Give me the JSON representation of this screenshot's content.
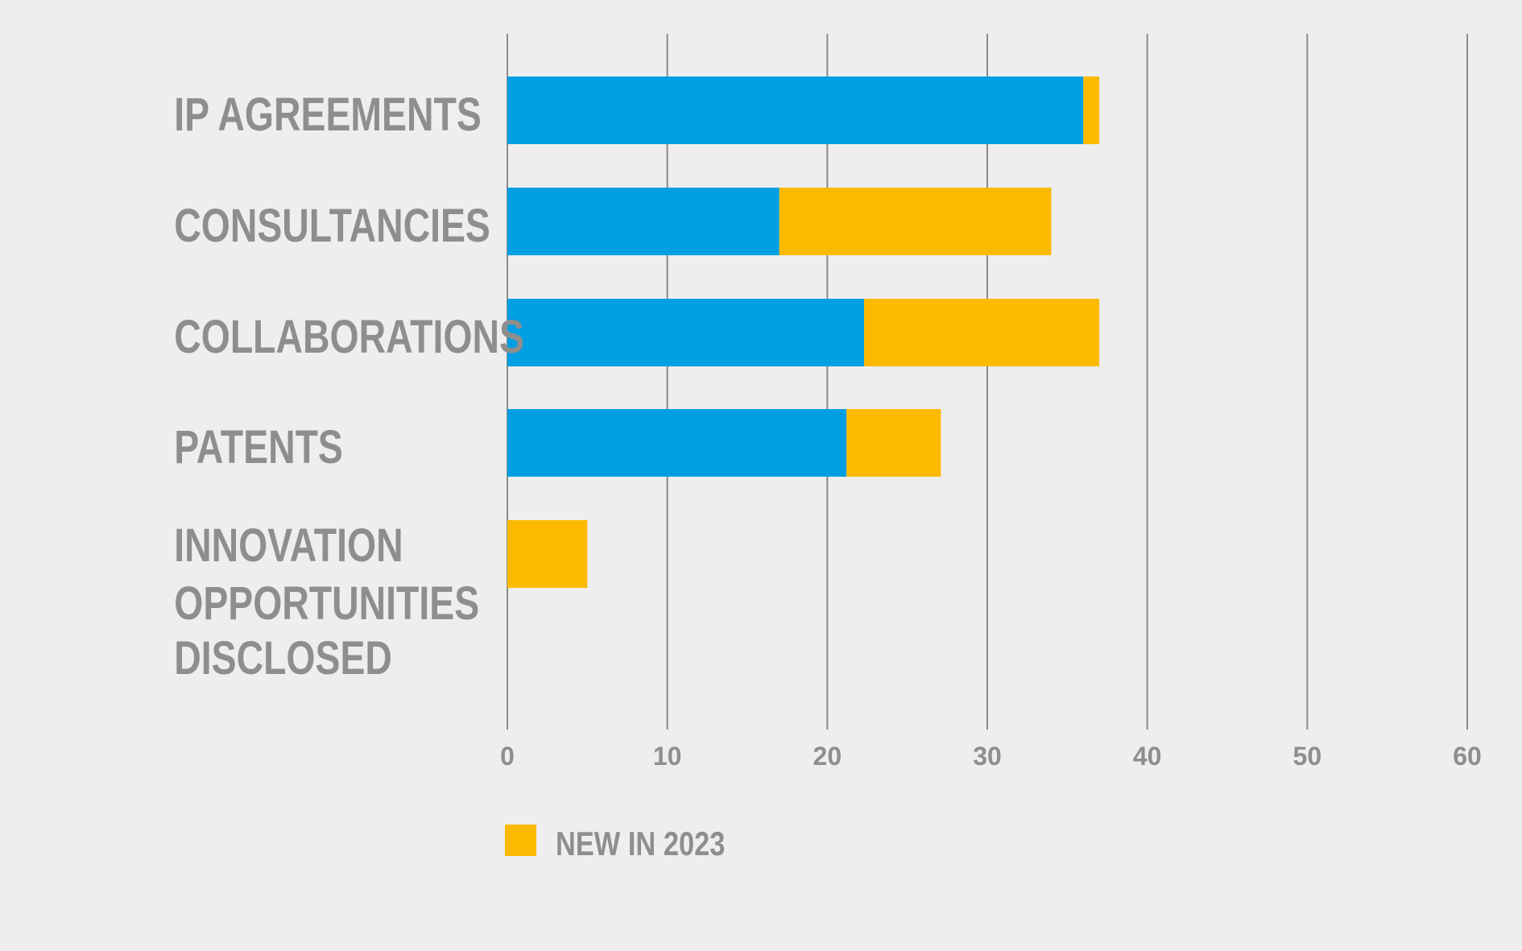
{
  "chart_data": {
    "type": "bar",
    "orientation": "horizontal",
    "stacked": true,
    "title": "",
    "xlabel": "",
    "ylabel": "",
    "categories": [
      [
        "IP AGREEMENTS"
      ],
      [
        "CONSULTANCIES"
      ],
      [
        "COLLABORATIONS"
      ],
      [
        "PATENTS"
      ],
      [
        "INNOVATION",
        "OPPORTUNITIES",
        "DISCLOSED"
      ]
    ],
    "series": [
      {
        "values": [
          36,
          17,
          22.3,
          21.2,
          0
        ],
        "color": "#009fe3"
      },
      {
        "name": "NEW IN 2023",
        "values": [
          1,
          17,
          14.7,
          5.9,
          5
        ],
        "color": "#fbba00"
      }
    ],
    "xlim": [
      0,
      60
    ],
    "xticks": [
      0,
      10,
      20,
      30,
      40,
      50,
      60
    ],
    "grid": true,
    "legend": {
      "placement": "bottom-left",
      "entries": [
        {
          "label": "NEW IN 2023",
          "color": "#fbba00"
        }
      ]
    }
  }
}
